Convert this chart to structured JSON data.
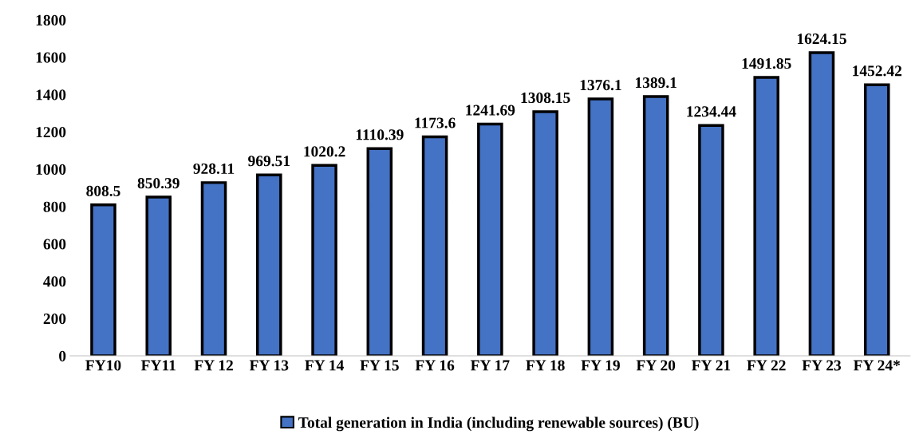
{
  "chart_data": {
    "type": "bar",
    "categories": [
      "FY10",
      "FY11",
      "FY 12",
      "FY 13",
      "FY 14",
      "FY 15",
      "FY 16",
      "FY 17",
      "FY 18",
      "FY 19",
      "FY 20",
      "FY 21",
      "FY 22",
      "FY 23",
      "FY 24*"
    ],
    "series": [
      {
        "name": "Total generation in India (including renewable sources) (BU)",
        "color": "#4472c4",
        "values": [
          808.5,
          850.39,
          928.11,
          969.51,
          1020.2,
          1110.39,
          1173.6,
          1241.69,
          1308.15,
          1376.1,
          1389.1,
          1234.44,
          1491.85,
          1624.15,
          1452.42
        ]
      }
    ],
    "ylim": [
      0,
      1800
    ],
    "yticks": [
      0,
      200,
      400,
      600,
      800,
      1000,
      1200,
      1400,
      1600,
      1800
    ],
    "data_labels": true,
    "legend": "bottom",
    "grid": false
  }
}
